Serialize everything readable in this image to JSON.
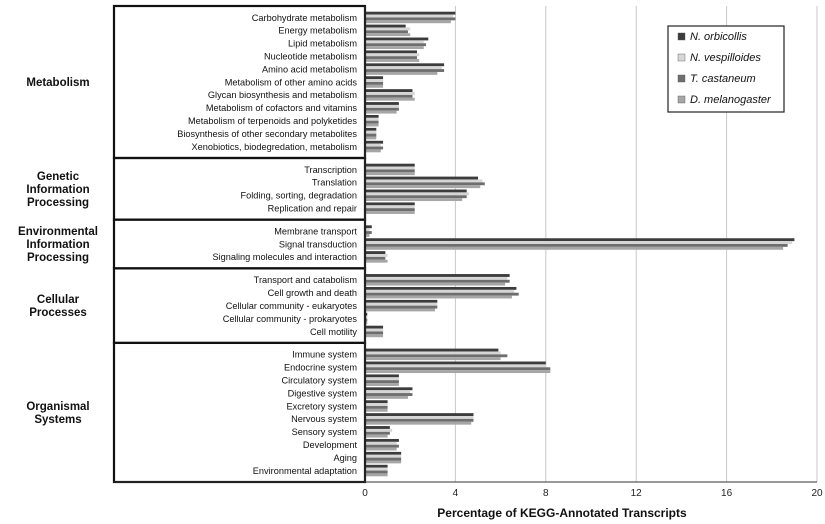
{
  "chart_data": {
    "type": "bar",
    "orientation": "horizontal",
    "title": "",
    "xlabel": "Percentage of KEGG-Annotated Transcripts",
    "ylabel": "",
    "xlim": [
      0,
      20
    ],
    "xticks": [
      0,
      4,
      8,
      12,
      16,
      20
    ],
    "grid": true,
    "legend_position": "top-right",
    "series": [
      {
        "name": "N. orbicollis",
        "color": "#3c3c3c"
      },
      {
        "name": "N. vespilloides",
        "color": "#d6d6d6"
      },
      {
        "name": "T. castaneum",
        "color": "#6e6e6e"
      },
      {
        "name": "D. melanogaster",
        "color": "#a6a6a6"
      }
    ],
    "groups": [
      {
        "name": "Metabolism",
        "categories": [
          {
            "label": "Carbohydrate metabolism",
            "values": [
              4.0,
              3.9,
              4.0,
              3.8
            ]
          },
          {
            "label": "Energy metabolism",
            "values": [
              1.8,
              2.0,
              1.9,
              2.0
            ]
          },
          {
            "label": "Lipid metabolism",
            "values": [
              2.8,
              2.6,
              2.7,
              2.6
            ]
          },
          {
            "label": "Nucleotide metabolism",
            "values": [
              2.3,
              2.4,
              2.3,
              2.4
            ]
          },
          {
            "label": "Amino acid metabolism",
            "values": [
              3.5,
              3.4,
              3.5,
              3.2
            ]
          },
          {
            "label": "Metabolism of other amino acids",
            "values": [
              0.8,
              0.8,
              0.8,
              0.8
            ]
          },
          {
            "label": "Glycan biosynthesis and metabolism",
            "values": [
              2.1,
              2.2,
              2.1,
              2.2
            ]
          },
          {
            "label": "Metabolism of cofactors and vitamins",
            "values": [
              1.5,
              1.5,
              1.5,
              1.4
            ]
          },
          {
            "label": "Metabolism of terpenoids and polyketides",
            "values": [
              0.6,
              0.6,
              0.6,
              0.6
            ]
          },
          {
            "label": "Biosynthesis of other secondary metabolites",
            "values": [
              0.5,
              0.5,
              0.5,
              0.5
            ]
          },
          {
            "label": "Xenobiotics, biodegredation, metabolism",
            "values": [
              0.8,
              0.7,
              0.8,
              0.7
            ]
          }
        ]
      },
      {
        "name": "Genetic Information Processing",
        "categories": [
          {
            "label": "Transcription",
            "values": [
              2.2,
              2.2,
              2.2,
              2.2
            ]
          },
          {
            "label": "Translation",
            "values": [
              5.0,
              5.2,
              5.3,
              5.1
            ]
          },
          {
            "label": "Folding, sorting, degradation",
            "values": [
              4.5,
              4.6,
              4.5,
              4.3
            ]
          },
          {
            "label": "Replication and repair",
            "values": [
              2.2,
              2.2,
              2.2,
              2.2
            ]
          }
        ]
      },
      {
        "name": "Environmental Information Processing",
        "categories": [
          {
            "label": "Membrane transport",
            "values": [
              0.3,
              0.2,
              0.3,
              0.2
            ]
          },
          {
            "label": "Signal transduction",
            "values": [
              19.0,
              18.9,
              18.7,
              18.5
            ]
          },
          {
            "label": "Signaling molecules and interaction",
            "values": [
              0.9,
              1.0,
              0.9,
              1.0
            ]
          }
        ]
      },
      {
        "name": "Cellular Processes",
        "categories": [
          {
            "label": "Transport and catabolism",
            "values": [
              6.4,
              6.3,
              6.4,
              6.2
            ]
          },
          {
            "label": "Cell growth and death",
            "values": [
              6.7,
              6.6,
              6.8,
              6.5
            ]
          },
          {
            "label": "Cellular community - eukaryotes",
            "values": [
              3.2,
              3.2,
              3.2,
              3.1
            ]
          },
          {
            "label": "Cellular community - prokaryotes",
            "values": [
              0.1,
              0.1,
              0.1,
              0.1
            ]
          },
          {
            "label": "Cell motility",
            "values": [
              0.8,
              0.8,
              0.8,
              0.8
            ]
          }
        ]
      },
      {
        "name": "Organismal Systems",
        "categories": [
          {
            "label": "Immune system",
            "values": [
              5.9,
              6.0,
              6.3,
              6.0
            ]
          },
          {
            "label": "Endocrine system",
            "values": [
              8.0,
              8.0,
              8.2,
              8.2
            ]
          },
          {
            "label": "Circulatory system",
            "values": [
              1.5,
              1.5,
              1.5,
              1.5
            ]
          },
          {
            "label": "Digestive system",
            "values": [
              2.1,
              2.0,
              2.1,
              1.9
            ]
          },
          {
            "label": "Excretory system",
            "values": [
              1.0,
              1.0,
              1.0,
              1.0
            ]
          },
          {
            "label": "Nervous system",
            "values": [
              4.8,
              4.8,
              4.8,
              4.7
            ]
          },
          {
            "label": "Sensory system",
            "values": [
              1.1,
              1.2,
              1.1,
              1.0
            ]
          },
          {
            "label": "Development",
            "values": [
              1.5,
              1.4,
              1.5,
              1.4
            ]
          },
          {
            "label": "Aging",
            "values": [
              1.6,
              1.6,
              1.6,
              1.6
            ]
          },
          {
            "label": "Environmental adaptation",
            "values": [
              1.0,
              1.0,
              1.0,
              1.0
            ]
          }
        ]
      }
    ]
  }
}
